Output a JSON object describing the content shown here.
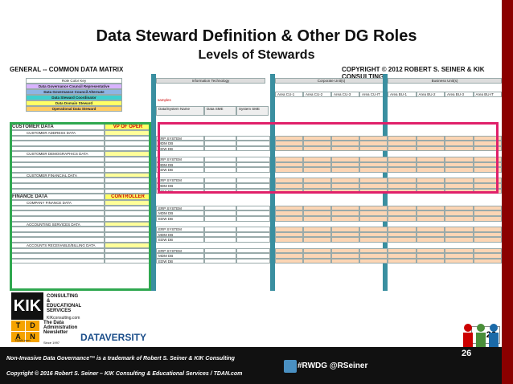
{
  "slide": {
    "title": "Data Steward Definition & Other DG Roles",
    "subtitle": "Levels of Stewards",
    "matrix_title": "GENERAL -- COMMON DATA MATRIX",
    "copyright_top": "COPYRIGHT © 2012 ROBERT S. SEINER & KIK CONSULTING"
  },
  "matrix": {
    "role_key": "Role Color Key",
    "roles": [
      {
        "label": "Data Governance Council Representative",
        "color": "#d9b3ff"
      },
      {
        "label": "Data Governance Council Alternate",
        "color": "#8fb4e3"
      },
      {
        "label": "Data Steward Coordinator",
        "color": "#3fcfcf"
      },
      {
        "label": "Data Domain Steward",
        "color": "#ffff66"
      },
      {
        "label": "Operational Data Steward",
        "color": "#ffcc66"
      }
    ],
    "col_groups": {
      "it": "Information Technology",
      "corp": "Corporate Unit(s)",
      "biz": "Business Unit(s)"
    },
    "samples": "samples",
    "it_cols": [
      "Data/System Name",
      "Data SME",
      "System SME"
    ],
    "corp_cols": [
      "Area CU-1",
      "Area CU-2",
      "Area CU-3",
      "Area CU-IT"
    ],
    "biz_cols": [
      "Area BU-1",
      "Area BU-2",
      "Area BU-3",
      "Area BU-IT"
    ],
    "sections": [
      {
        "name": "CUSTOMER DATA",
        "role": "VP OF OPER",
        "subs": [
          "CUSTOMER ADDRESS DATA",
          "CUSTOMER DEMOGRAPHICS DATA",
          "CUSTOMER FINANCIAL DATA"
        ]
      },
      {
        "name": "FINANCE DATA",
        "role": "CONTROLLER",
        "subs": [
          "COMPANY FINANCE DATA",
          "ACCOUNTING SERVICES DATA",
          "ACCOUNTS RECEIVABLE/BILLING DATA"
        ]
      }
    ],
    "systems": [
      "ERP SYSTEM",
      "MDM DB",
      "EDW DB"
    ]
  },
  "branding": {
    "kik_logo": "KIK",
    "kik_text": "CONSULTING & EDUCATIONAL SERVICES",
    "kik_url": "KIKconsulting.com",
    "tdan_letters": [
      "T",
      "D",
      "A",
      "N"
    ],
    "tdan_text": "The Data Administration Newsletter",
    "tdan_url": "TDAN.com",
    "tdan_since": "Since 1997",
    "dataversity": "DATAVERSITY"
  },
  "footer": {
    "line1": "Non-Invasive Data Governance™ is a trademark of Robert S. Seiner & KIK Consulting",
    "line2": "Copyright © 2016 Robert S. Seiner – KIK Consulting & Educational Services / TDAN.com",
    "hashtag": "#RWDG @RSeiner",
    "page": "26",
    "page_box": "26"
  }
}
